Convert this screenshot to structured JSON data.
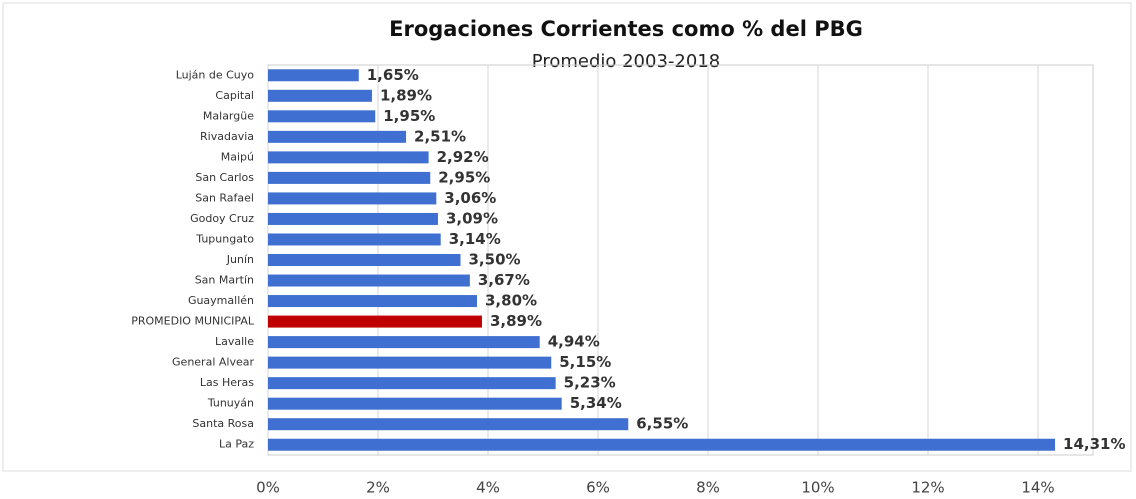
{
  "chart_data": {
    "type": "barh",
    "title": "Erogaciones Corrientes como % del PBG",
    "subtitle": "Promedio 2003-2018",
    "categories": [
      "Luján de Cuyo",
      "Capital",
      "Malargüe",
      "Rivadavia",
      "Maipú",
      "San Carlos",
      "San Rafael",
      "Godoy Cruz",
      "Tupungato",
      "Junín",
      "San Martín",
      "Guaymallén",
      "PROMEDIO MUNICIPAL",
      "Lavalle",
      "General Alvear",
      "Las Heras",
      "Tunuyán",
      "Santa Rosa",
      "La Paz"
    ],
    "values": [
      1.65,
      1.89,
      1.95,
      2.51,
      2.92,
      2.95,
      3.06,
      3.09,
      3.14,
      3.5,
      3.67,
      3.8,
      3.89,
      4.94,
      5.15,
      5.23,
      5.34,
      6.55,
      14.31
    ],
    "value_labels": [
      "1,65%",
      "1,89%",
      "1,95%",
      "2,51%",
      "2,92%",
      "2,95%",
      "3,06%",
      "3,09%",
      "3,14%",
      "3,50%",
      "3,67%",
      "3,80%",
      "3,89%",
      "4,94%",
      "5,15%",
      "5,23%",
      "5,34%",
      "6,55%",
      "14,31%"
    ],
    "colors": [
      "#3f6fd1",
      "#3f6fd1",
      "#3f6fd1",
      "#3f6fd1",
      "#3f6fd1",
      "#3f6fd1",
      "#3f6fd1",
      "#3f6fd1",
      "#3f6fd1",
      "#3f6fd1",
      "#3f6fd1",
      "#3f6fd1",
      "#c00000",
      "#3f6fd1",
      "#3f6fd1",
      "#3f6fd1",
      "#3f6fd1",
      "#3f6fd1",
      "#3f6fd1"
    ],
    "xlim": [
      0,
      15
    ],
    "xticks": [
      {
        "value": 0,
        "label": "0%"
      },
      {
        "value": 2,
        "label": "2%"
      },
      {
        "value": 4,
        "label": "4%"
      },
      {
        "value": 6,
        "label": "6%"
      },
      {
        "value": 8,
        "label": "8%"
      },
      {
        "value": 10,
        "label": "10%"
      },
      {
        "value": 12,
        "label": "12%"
      },
      {
        "value": 14,
        "label": "14%"
      }
    ],
    "grid": true
  }
}
